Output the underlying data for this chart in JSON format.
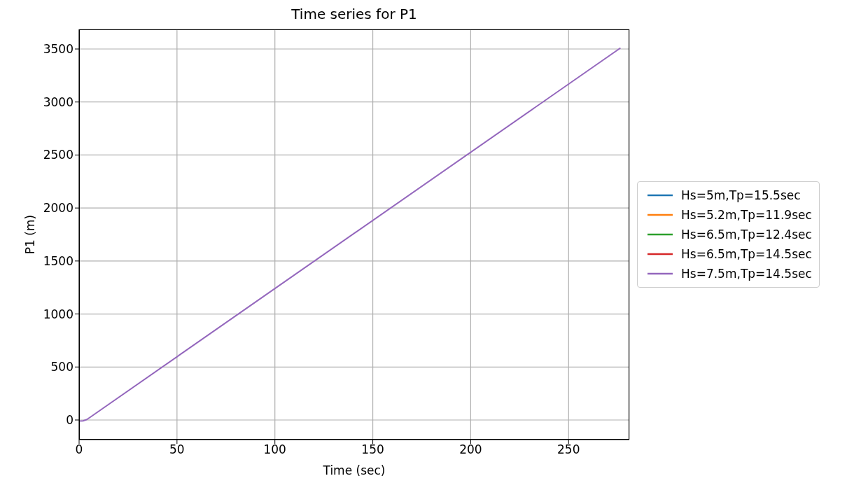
{
  "chart_data": {
    "type": "line",
    "title": "Time series for P1",
    "xlabel": "Time (sec)",
    "ylabel": "P1 (m)",
    "x": [
      0,
      2,
      4,
      276.5
    ],
    "series": [
      {
        "name": "Hs=5m,Tp=15.5sec",
        "color": "#1f77b4",
        "values": [
          null,
          null,
          null,
          null
        ]
      },
      {
        "name": "Hs=5.2m,Tp=11.9sec",
        "color": "#ff7f0e",
        "values": [
          null,
          null,
          null,
          null
        ]
      },
      {
        "name": "Hs=6.5m,Tp=12.4sec",
        "color": "#2ca02c",
        "values": [
          null,
          null,
          null,
          null
        ]
      },
      {
        "name": "Hs=6.5m,Tp=14.5sec",
        "color": "#d62728",
        "values": [
          null,
          null,
          null,
          null
        ]
      },
      {
        "name": "Hs=7.5m,Tp=14.5sec",
        "color": "#9467bd",
        "values": [
          -10,
          -8,
          5,
          3510
        ]
      }
    ],
    "xlim": [
      0,
      281
    ],
    "xticks": [
      0,
      50,
      100,
      150,
      200,
      250
    ],
    "ylim": [
      -185,
      3685
    ],
    "yticks": [
      0,
      500,
      1000,
      1500,
      2000,
      2500,
      3000,
      3500
    ],
    "grid": true,
    "legend": "right",
    "marker": "none",
    "line_style": "solid"
  }
}
